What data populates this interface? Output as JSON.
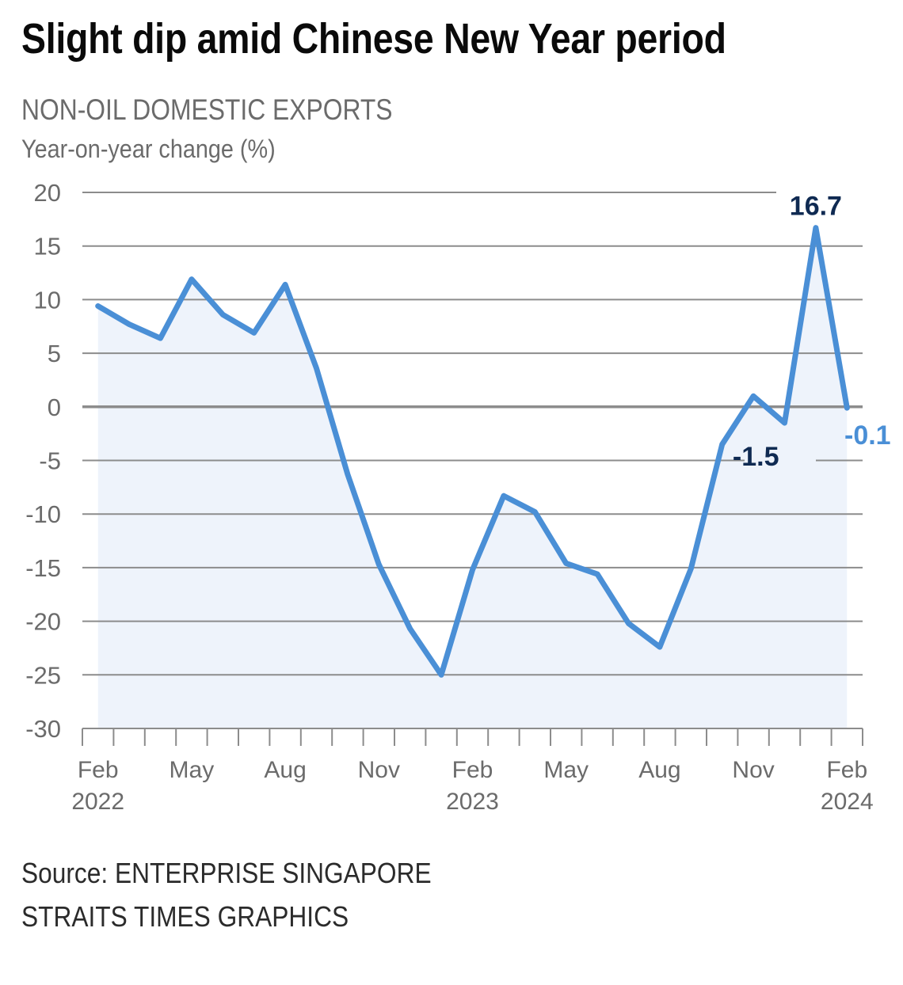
{
  "header": {
    "title": "Slight dip amid Chinese New Year period",
    "subtitle": "NON-OIL DOMESTIC EXPORTS",
    "unit_label": "Year-on-year change (%)"
  },
  "footer": {
    "source": "Source: ENTERPRISE SINGAPORE",
    "credit": "STRAITS TIMES GRAPHICS"
  },
  "colors": {
    "line": "#4a8fd6",
    "fill": "#eef3fb",
    "grid": "#8c8c8c",
    "axis_text": "#6b6b6b",
    "label_dark": "#0f2a52",
    "label_light": "#4a8fd6"
  },
  "chart_data": {
    "type": "area",
    "title": "Slight dip amid Chinese New Year period",
    "subtitle": "NON-OIL DOMESTIC EXPORTS",
    "ylabel": "Year-on-year change (%)",
    "xlabel": "",
    "ylim": [
      -30,
      20
    ],
    "yticks": [
      20,
      15,
      10,
      5,
      0,
      -5,
      -10,
      -15,
      -20,
      -25,
      -30
    ],
    "grid": true,
    "x": [
      "Feb 2022",
      "Mar 2022",
      "Apr 2022",
      "May 2022",
      "Jun 2022",
      "Jul 2022",
      "Aug 2022",
      "Sep 2022",
      "Oct 2022",
      "Nov 2022",
      "Dec 2022",
      "Jan 2023",
      "Feb 2023",
      "Mar 2023",
      "Apr 2023",
      "May 2023",
      "Jun 2023",
      "Jul 2023",
      "Aug 2023",
      "Sep 2023",
      "Oct 2023",
      "Nov 2023",
      "Dec 2023",
      "Jan 2024",
      "Feb 2024"
    ],
    "series": [
      {
        "name": "Non-oil domestic exports YoY change (%)",
        "values": [
          9.4,
          7.7,
          6.4,
          11.9,
          8.6,
          6.9,
          11.4,
          3.6,
          -6.3,
          -14.7,
          -20.7,
          -25.0,
          -15.2,
          -8.3,
          -9.8,
          -14.6,
          -15.6,
          -20.2,
          -22.4,
          -15.1,
          -3.5,
          1.0,
          -1.5,
          16.7,
          -0.1
        ]
      }
    ],
    "xtick_labels": [
      {
        "index": 0,
        "month": "Feb",
        "year": "2022"
      },
      {
        "index": 3,
        "month": "May",
        "year": ""
      },
      {
        "index": 6,
        "month": "Aug",
        "year": ""
      },
      {
        "index": 9,
        "month": "Nov",
        "year": ""
      },
      {
        "index": 12,
        "month": "Feb",
        "year": "2023"
      },
      {
        "index": 15,
        "month": "May",
        "year": ""
      },
      {
        "index": 18,
        "month": "Aug",
        "year": ""
      },
      {
        "index": 21,
        "month": "Nov",
        "year": ""
      },
      {
        "index": 24,
        "month": "Feb",
        "year": "2024"
      }
    ],
    "annotations": [
      {
        "index": 23,
        "text": "16.7",
        "style": "dark",
        "position": "above"
      },
      {
        "index": 22,
        "text": "-1.5",
        "style": "dark",
        "position": "below-left"
      },
      {
        "index": 24,
        "text": "-0.1",
        "style": "light",
        "position": "below"
      }
    ]
  }
}
